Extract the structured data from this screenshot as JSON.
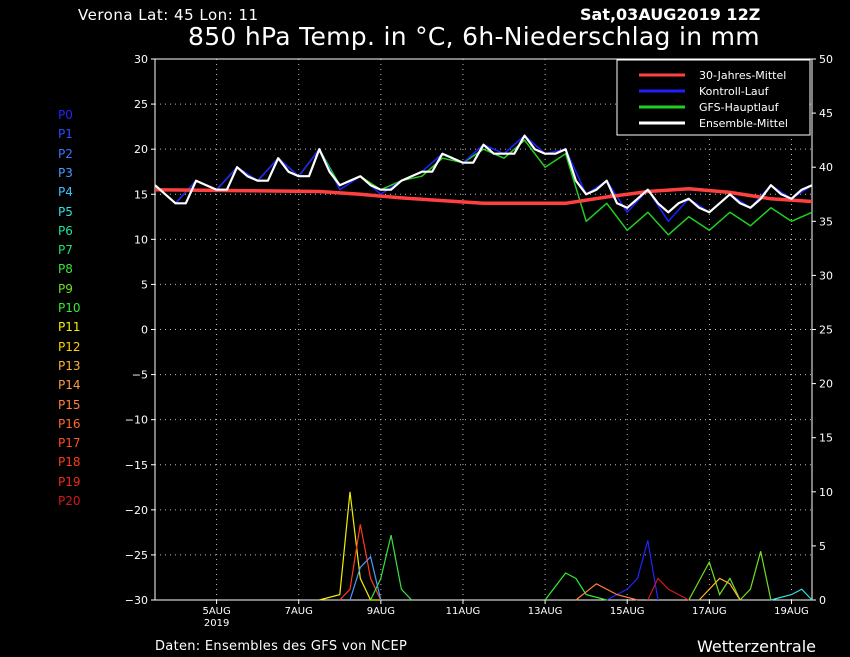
{
  "header": {
    "location": "Verona   Lat: 45 Lon: 11",
    "datetime": "Sat,03AUG2019 12Z",
    "title": "850 hPa Temp. in °C, 6h-Niederschlag in mm"
  },
  "footer": {
    "source": "Daten: Ensembles des GFS von NCEP",
    "brand": "Wetterzentrale"
  },
  "members": [
    {
      "label": "P0",
      "color": "#2323ff"
    },
    {
      "label": "P1",
      "color": "#2a4cff"
    },
    {
      "label": "P2",
      "color": "#3a74ff"
    },
    {
      "label": "P3",
      "color": "#4a9cff"
    },
    {
      "label": "P4",
      "color": "#43c0ff"
    },
    {
      "label": "P5",
      "color": "#32e0e0"
    },
    {
      "label": "P6",
      "color": "#22e0a0"
    },
    {
      "label": "P7",
      "color": "#22e070"
    },
    {
      "label": "P8",
      "color": "#3ae040"
    },
    {
      "label": "P9",
      "color": "#70e020"
    },
    {
      "label": "P10",
      "color": "#30f030"
    },
    {
      "label": "P11",
      "color": "#f0f000"
    },
    {
      "label": "P12",
      "color": "#ffd000"
    },
    {
      "label": "P13",
      "color": "#ffb030"
    },
    {
      "label": "P14",
      "color": "#ff9a40"
    },
    {
      "label": "P15",
      "color": "#ff8040"
    },
    {
      "label": "P16",
      "color": "#ff6a30"
    },
    {
      "label": "P17",
      "color": "#ff5020"
    },
    {
      "label": "P18",
      "color": "#ff3a1a"
    },
    {
      "label": "P19",
      "color": "#f02a1a"
    },
    {
      "label": "P20",
      "color": "#d01a1a"
    }
  ],
  "chart_data": {
    "type": "line",
    "title": "850 hPa Temp. in °C, 6h-Niederschlag in mm",
    "x_range": [
      "2019-08-03T12",
      "2019-08-19T12"
    ],
    "x_tick_labels": [
      {
        "date": "2019-08-05",
        "label": "5AUG",
        "sublabel": "2019"
      },
      {
        "date": "2019-08-07",
        "label": "7AUG"
      },
      {
        "date": "2019-08-09",
        "label": "9AUG"
      },
      {
        "date": "2019-08-11",
        "label": "11AUG"
      },
      {
        "date": "2019-08-13",
        "label": "13AUG"
      },
      {
        "date": "2019-08-15",
        "label": "15AUG"
      },
      {
        "date": "2019-08-17",
        "label": "17AUG"
      },
      {
        "date": "2019-08-19",
        "label": "19AUG"
      }
    ],
    "y_left": {
      "min": -30,
      "max": 30,
      "step": 5,
      "ticks": [
        "30",
        "25",
        "20",
        "15",
        "10",
        "5",
        "0",
        "−5",
        "−10",
        "−15",
        "−20",
        "−25",
        "−30"
      ]
    },
    "y_right": {
      "min": 0,
      "max": 50,
      "step": 5,
      "ticks": [
        "50",
        "45",
        "40",
        "35",
        "30",
        "25",
        "20",
        "15",
        "10",
        "5",
        "0"
      ]
    },
    "grid": true,
    "legend": {
      "position": "top-right",
      "entries": [
        {
          "name": "30-Jahres-Mittel",
          "color": "#ff4040"
        },
        {
          "name": "Kontroll-Lauf",
          "color": "#2020ff"
        },
        {
          "name": "GFS-Hauptlauf",
          "color": "#20d020"
        },
        {
          "name": "Ensemble-Mittel",
          "color": "#ffffff"
        }
      ]
    },
    "series": [
      {
        "name": "30-Jahres-Mittel",
        "color": "#ff4040",
        "x": [
          "2019-08-03T12",
          "2019-08-05T12",
          "2019-08-07T12",
          "2019-08-08T12",
          "2019-08-09T12",
          "2019-08-10T12",
          "2019-08-11T12",
          "2019-08-12T12",
          "2019-08-13T12",
          "2019-08-14T12",
          "2019-08-15T12",
          "2019-08-16T12",
          "2019-08-17T12",
          "2019-08-18T12",
          "2019-08-19T12"
        ],
        "values": [
          15.5,
          15.4,
          15.3,
          15.0,
          14.6,
          14.3,
          14.0,
          14.0,
          14.0,
          14.7,
          15.3,
          15.6,
          15.2,
          14.5,
          14.2
        ]
      },
      {
        "name": "Ensemble-Mittel",
        "color": "#ffffff",
        "x": [
          "2019-08-03T12",
          "2019-08-03T18",
          "2019-08-04T00",
          "2019-08-04T06",
          "2019-08-04T12",
          "2019-08-04T18",
          "2019-08-05T00",
          "2019-08-05T06",
          "2019-08-05T12",
          "2019-08-05T18",
          "2019-08-06T00",
          "2019-08-06T06",
          "2019-08-06T12",
          "2019-08-06T18",
          "2019-08-07T00",
          "2019-08-07T06",
          "2019-08-07T12",
          "2019-08-07T18",
          "2019-08-08T00",
          "2019-08-08T06",
          "2019-08-08T12",
          "2019-08-08T18",
          "2019-08-09T00",
          "2019-08-09T06",
          "2019-08-09T12",
          "2019-08-09T18",
          "2019-08-10T00",
          "2019-08-10T06",
          "2019-08-10T12",
          "2019-08-10T18",
          "2019-08-11T00",
          "2019-08-11T06",
          "2019-08-11T12",
          "2019-08-11T18",
          "2019-08-12T00",
          "2019-08-12T06",
          "2019-08-12T12",
          "2019-08-12T18",
          "2019-08-13T00",
          "2019-08-13T06",
          "2019-08-13T12",
          "2019-08-13T18",
          "2019-08-14T00",
          "2019-08-14T06",
          "2019-08-14T12",
          "2019-08-14T18",
          "2019-08-15T00",
          "2019-08-15T06",
          "2019-08-15T12",
          "2019-08-15T18",
          "2019-08-16T00",
          "2019-08-16T06",
          "2019-08-16T12",
          "2019-08-16T18",
          "2019-08-17T00",
          "2019-08-17T06",
          "2019-08-17T12",
          "2019-08-17T18",
          "2019-08-18T00",
          "2019-08-18T06",
          "2019-08-18T12",
          "2019-08-18T18",
          "2019-08-19T00",
          "2019-08-19T06",
          "2019-08-19T12"
        ],
        "values": [
          16,
          15,
          14,
          14,
          16.5,
          16,
          15.5,
          15.5,
          18,
          17,
          16.5,
          16.5,
          19,
          17.5,
          17,
          17,
          20,
          17.5,
          16,
          16.5,
          17,
          16,
          15.5,
          15.5,
          16.5,
          17,
          17.5,
          17.5,
          19.5,
          19,
          18.5,
          18.5,
          20.5,
          19.5,
          19.5,
          19.5,
          21.5,
          20,
          19.5,
          19.5,
          20,
          16.5,
          15,
          15.5,
          16.5,
          14,
          13.5,
          14.5,
          15.5,
          14,
          13,
          14,
          14.5,
          13.5,
          13,
          14,
          15,
          14,
          13.5,
          14.5,
          16,
          15,
          14.5,
          15.5,
          16
        ]
      },
      {
        "name": "Kontroll-Lauf",
        "color": "#2020ff",
        "x": [
          "2019-08-03T12",
          "2019-08-04T00",
          "2019-08-04T12",
          "2019-08-05T00",
          "2019-08-05T12",
          "2019-08-06T00",
          "2019-08-06T12",
          "2019-08-07T00",
          "2019-08-07T12",
          "2019-08-08T00",
          "2019-08-08T12",
          "2019-08-09T00",
          "2019-08-09T12",
          "2019-08-10T00",
          "2019-08-10T12",
          "2019-08-11T00",
          "2019-08-11T12",
          "2019-08-12T00",
          "2019-08-12T12",
          "2019-08-13T00",
          "2019-08-13T12",
          "2019-08-14T00",
          "2019-08-14T12",
          "2019-08-15T00",
          "2019-08-15T12",
          "2019-08-16T00",
          "2019-08-16T12",
          "2019-08-17T00",
          "2019-08-17T12",
          "2019-08-18T00",
          "2019-08-18T12",
          "2019-08-19T00",
          "2019-08-19T12"
        ],
        "values": [
          16,
          14,
          16.5,
          15.5,
          18,
          16.5,
          19,
          17,
          20,
          15.5,
          17,
          15,
          16.5,
          17.5,
          19.5,
          18.5,
          20.5,
          19.5,
          21.5,
          19.5,
          20,
          15,
          16.5,
          13,
          15.5,
          12,
          14.5,
          13,
          15,
          13.5,
          16,
          14.5,
          16
        ]
      },
      {
        "name": "GFS-Hauptlauf",
        "color": "#20d020",
        "x": [
          "2019-08-03T12",
          "2019-08-04T00",
          "2019-08-04T12",
          "2019-08-05T00",
          "2019-08-05T12",
          "2019-08-06T00",
          "2019-08-06T12",
          "2019-08-07T00",
          "2019-08-07T12",
          "2019-08-08T00",
          "2019-08-08T12",
          "2019-08-09T00",
          "2019-08-09T12",
          "2019-08-10T00",
          "2019-08-10T12",
          "2019-08-11T00",
          "2019-08-11T12",
          "2019-08-12T00",
          "2019-08-12T12",
          "2019-08-13T00",
          "2019-08-13T12",
          "2019-08-14T00",
          "2019-08-14T12",
          "2019-08-15T00",
          "2019-08-15T12",
          "2019-08-16T00",
          "2019-08-16T12",
          "2019-08-17T00",
          "2019-08-17T12",
          "2019-08-18T00",
          "2019-08-18T12",
          "2019-08-19T00",
          "2019-08-19T12"
        ],
        "values": [
          16,
          14,
          16.5,
          15.5,
          18,
          16.5,
          19,
          17,
          20,
          16,
          17,
          15.5,
          16.5,
          17,
          19,
          18.5,
          20,
          19,
          21,
          18,
          19.5,
          12,
          14,
          11,
          13,
          10.5,
          12.5,
          11,
          13,
          11.5,
          13.5,
          12,
          13
        ]
      }
    ],
    "precip_series": [
      {
        "name": "P11",
        "color": "#f0f000",
        "x": [
          "2019-08-07T12",
          "2019-08-08T00",
          "2019-08-08T06",
          "2019-08-08T12",
          "2019-08-08T18",
          "2019-08-09T00"
        ],
        "values": [
          0,
          0.5,
          10,
          2,
          0,
          0
        ]
      },
      {
        "name": "P18",
        "color": "#ff3a1a",
        "x": [
          "2019-08-08T00",
          "2019-08-08T06",
          "2019-08-08T12",
          "2019-08-08T18",
          "2019-08-09T00"
        ],
        "values": [
          0,
          1,
          7,
          2,
          0
        ]
      },
      {
        "name": "P8",
        "color": "#3ae040",
        "x": [
          "2019-08-08T18",
          "2019-08-09T00",
          "2019-08-09T06",
          "2019-08-09T12",
          "2019-08-09T18"
        ],
        "values": [
          0,
          2,
          6,
          1,
          0
        ]
      },
      {
        "name": "P3",
        "color": "#4a9cff",
        "x": [
          "2019-08-08T06",
          "2019-08-08T12",
          "2019-08-08T18",
          "2019-08-09T00"
        ],
        "values": [
          0,
          3,
          4,
          0
        ]
      },
      {
        "name": "P0",
        "color": "#2323ff",
        "x": [
          "2019-08-14T12",
          "2019-08-15T00",
          "2019-08-15T06",
          "2019-08-15T12",
          "2019-08-15T18"
        ],
        "values": [
          0,
          1,
          2,
          5.5,
          0
        ]
      },
      {
        "name": "P10",
        "color": "#30f030",
        "x": [
          "2019-08-13T00",
          "2019-08-13T12",
          "2019-08-13T18",
          "2019-08-14T00",
          "2019-08-14T12"
        ],
        "values": [
          0,
          2.5,
          2,
          0.5,
          0
        ]
      },
      {
        "name": "P15",
        "color": "#ff8040",
        "x": [
          "2019-08-13T18",
          "2019-08-14T06",
          "2019-08-14T18",
          "2019-08-15T06"
        ],
        "values": [
          0,
          1.5,
          0.5,
          0
        ]
      },
      {
        "name": "P9",
        "color": "#70e020",
        "x": [
          "2019-08-16T12",
          "2019-08-17T00",
          "2019-08-17T06",
          "2019-08-17T12",
          "2019-08-17T18",
          "2019-08-18T00",
          "2019-08-18T06",
          "2019-08-18T12"
        ],
        "values": [
          0,
          3.5,
          0.5,
          2,
          0,
          1,
          4.5,
          0
        ]
      },
      {
        "name": "P13",
        "color": "#ffb030",
        "x": [
          "2019-08-16T18",
          "2019-08-17T06",
          "2019-08-17T12",
          "2019-08-17T18"
        ],
        "values": [
          0,
          2,
          1.5,
          0
        ]
      },
      {
        "name": "P20",
        "color": "#d01a1a",
        "x": [
          "2019-08-15T12",
          "2019-08-15T18",
          "2019-08-16T00",
          "2019-08-16T12"
        ],
        "values": [
          0,
          2,
          1,
          0
        ]
      },
      {
        "name": "P5",
        "color": "#32e0e0",
        "x": [
          "2019-08-18T12",
          "2019-08-19T00",
          "2019-08-19T06",
          "2019-08-19T12"
        ],
        "values": [
          0,
          0.5,
          1,
          0
        ]
      }
    ]
  }
}
